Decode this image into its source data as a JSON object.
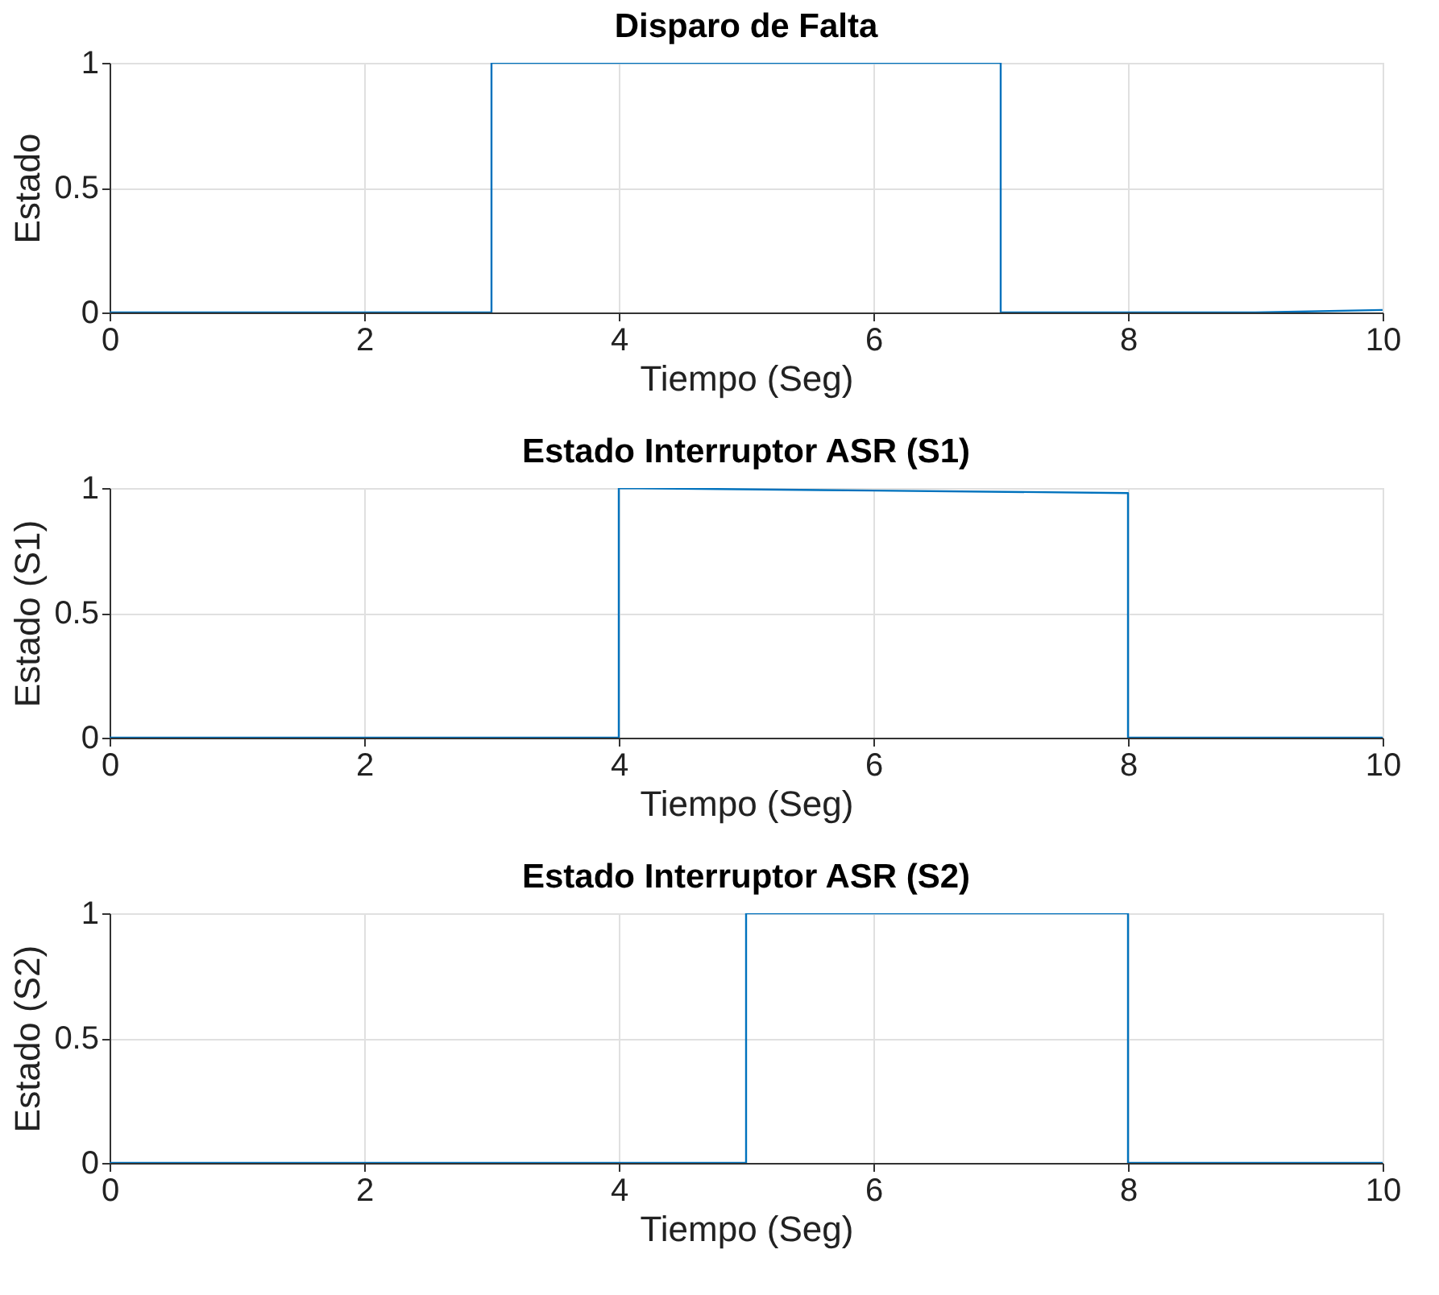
{
  "chart_data": [
    {
      "type": "line",
      "title": "Disparo de Falta",
      "xlabel": "Tiempo (Seg)",
      "ylabel": "Estado",
      "x": [
        0,
        3,
        3,
        7,
        7,
        9,
        10
      ],
      "series": [
        {
          "color": "#0072bd",
          "values": [
            0,
            0,
            1,
            1,
            0,
            0,
            0.01
          ]
        }
      ],
      "xlim": [
        0,
        10
      ],
      "xticks": [
        0,
        2,
        4,
        6,
        8,
        10
      ],
      "ylim": [
        0,
        1
      ],
      "yticks": [
        0,
        0.5,
        1
      ],
      "grid": true
    },
    {
      "type": "line",
      "title": "Estado Interruptor ASR (S1)",
      "xlabel": "Tiempo (Seg)",
      "ylabel": "Estado (S1)",
      "x": [
        0,
        4,
        4,
        6,
        8,
        8,
        10
      ],
      "series": [
        {
          "color": "#0072bd",
          "values": [
            0,
            0,
            1,
            0.99,
            0.98,
            0,
            0
          ]
        }
      ],
      "xlim": [
        0,
        10
      ],
      "xticks": [
        0,
        2,
        4,
        6,
        8,
        10
      ],
      "ylim": [
        0,
        1
      ],
      "yticks": [
        0,
        0.5,
        1
      ],
      "grid": true
    },
    {
      "type": "line",
      "title": "Estado Interruptor ASR (S2)",
      "xlabel": "Tiempo (Seg)",
      "ylabel": "Estado (S2)",
      "x": [
        0,
        5,
        5,
        8,
        8,
        10
      ],
      "series": [
        {
          "color": "#0072bd",
          "values": [
            0,
            0,
            1,
            1,
            0,
            0
          ]
        }
      ],
      "xlim": [
        0,
        10
      ],
      "xticks": [
        0,
        2,
        4,
        6,
        8,
        10
      ],
      "ylim": [
        0,
        1
      ],
      "yticks": [
        0,
        0.5,
        1
      ],
      "grid": true
    }
  ]
}
